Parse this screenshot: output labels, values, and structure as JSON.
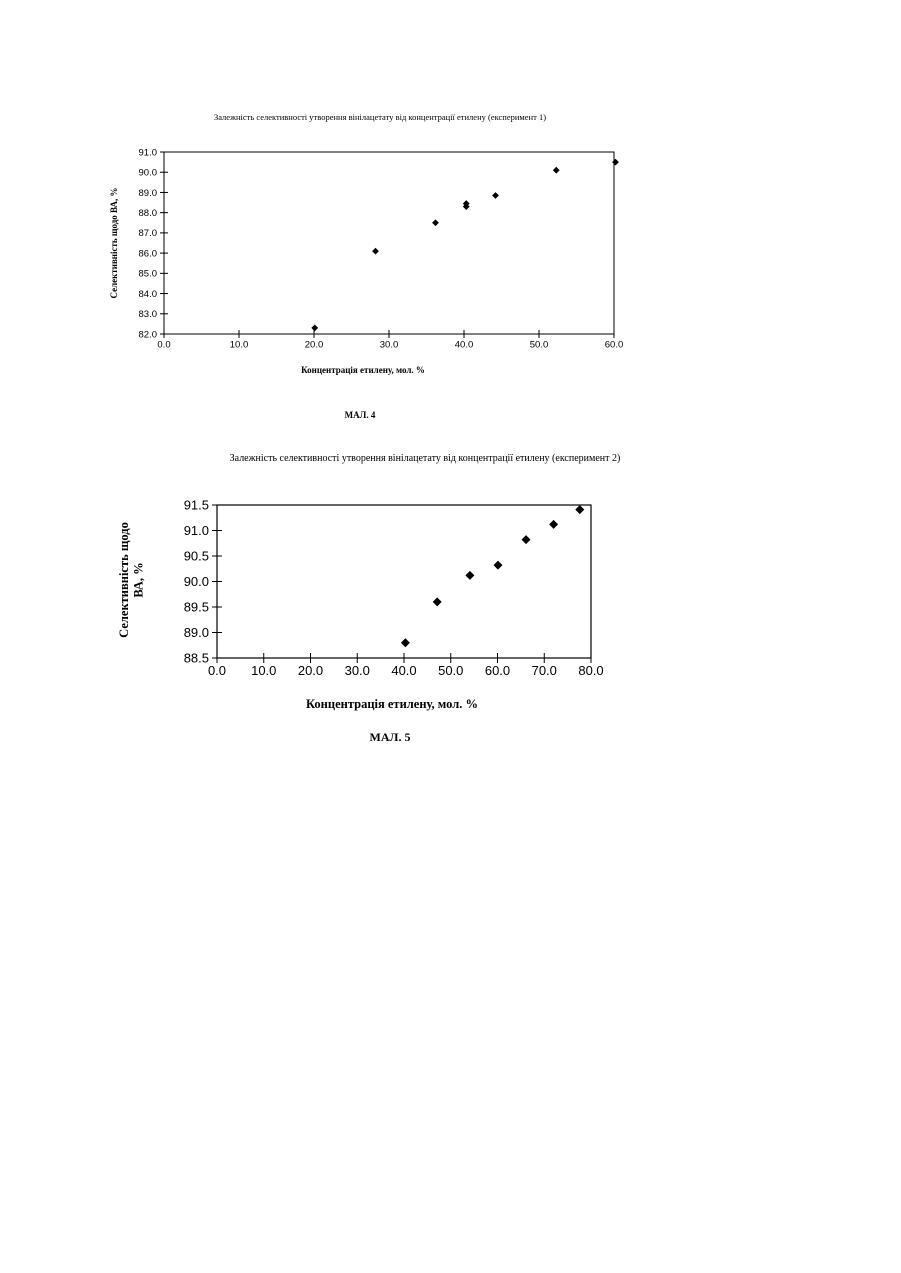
{
  "chart_data": [
    {
      "type": "scatter",
      "title": "Залежність селективності утворення вінілацетату від  концентрації етилену (експеримент 1)",
      "xlabel": "Концентрація  етилену,  мол.  %",
      "ylabel": "Селективність щодо ВА,  %",
      "caption": "МАЛ.  4",
      "xlim": [
        0,
        60
      ],
      "ylim": [
        82,
        91
      ],
      "xticks": [
        "0.0",
        "10.0",
        "20.0",
        "30.0",
        "40.0",
        "50.0",
        "60.0"
      ],
      "yticks": [
        "82.0",
        "83.0",
        "84.0",
        "85.0",
        "86.0",
        "87.0",
        "88.0",
        "89.0",
        "90.0",
        "91.0"
      ],
      "grid": false,
      "marker": "diamond",
      "color": "#000000",
      "points": [
        {
          "x": 20.1,
          "y": 82.3
        },
        {
          "x": 28.2,
          "y": 86.1
        },
        {
          "x": 36.2,
          "y": 87.5
        },
        {
          "x": 40.3,
          "y": 88.3
        },
        {
          "x": 40.3,
          "y": 88.45
        },
        {
          "x": 44.2,
          "y": 88.85
        },
        {
          "x": 52.3,
          "y": 90.1
        },
        {
          "x": 60.2,
          "y": 90.5
        }
      ]
    },
    {
      "type": "scatter",
      "title": "Залежність селективності утворення вінілацетату від концентрації етилену (експеримент 2)",
      "xlabel": "Концентрація етилену,  мол. %",
      "ylabel_line1": "Селективність щодо",
      "ylabel_line2": "ВА, %",
      "caption": "МАЛ. 5",
      "xlim": [
        0,
        80
      ],
      "ylim": [
        88.5,
        91.5
      ],
      "xticks": [
        "0.0",
        "10.0",
        "20.0",
        "30.0",
        "40.0",
        "50.0",
        "60.0",
        "70.0",
        "80.0"
      ],
      "yticks": [
        "88.5",
        "89.0",
        "89.5",
        "90.0",
        "90.5",
        "91.0",
        "91.5"
      ],
      "grid": false,
      "marker": "diamond",
      "color": "#000000",
      "points": [
        {
          "x": 40.3,
          "y": 88.8
        },
        {
          "x": 47.1,
          "y": 89.6
        },
        {
          "x": 54.1,
          "y": 90.12
        },
        {
          "x": 60.1,
          "y": 90.32
        },
        {
          "x": 66.1,
          "y": 90.82
        },
        {
          "x": 72.0,
          "y": 91.12
        },
        {
          "x": 77.6,
          "y": 91.41
        }
      ]
    }
  ]
}
